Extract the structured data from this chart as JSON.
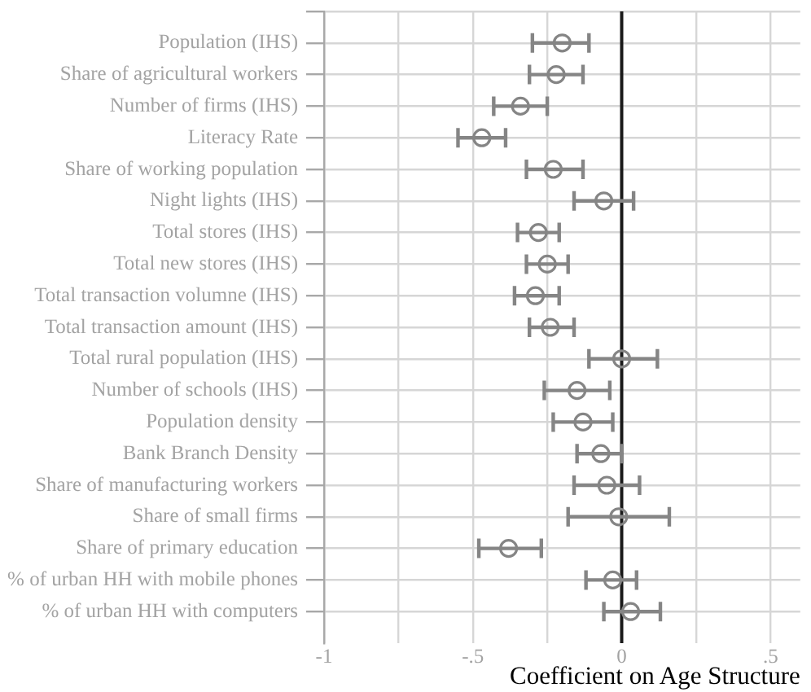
{
  "chart_data": {
    "type": "scatter",
    "orientation": "horizontal",
    "xlabel": "Coefficient on Age Structure",
    "categories": [
      "Population (IHS)",
      "Share of agricultural workers",
      "Number of firms (IHS)",
      "Literacy Rate",
      "Share of working population",
      "Night lights (IHS)",
      "Total stores (IHS)",
      "Total new stores (IHS)",
      "Total transaction volumne (IHS)",
      "Total transaction amount (IHS)",
      "Total rural population (IHS)",
      "Number of schools (IHS)",
      "Population density",
      "Bank Branch Density",
      "Share of manufacturing workers",
      "Share of small firms",
      "Share of primary education",
      "% of urban HH with mobile phones",
      "% of urban HH with computers"
    ],
    "values": [
      -0.2,
      -0.22,
      -0.34,
      -0.47,
      -0.23,
      -0.06,
      -0.28,
      -0.25,
      -0.29,
      -0.24,
      0.0,
      -0.15,
      -0.13,
      -0.07,
      -0.05,
      -0.01,
      -0.38,
      -0.03,
      0.03
    ],
    "errors": [
      [
        -0.3,
        -0.11
      ],
      [
        -0.31,
        -0.13
      ],
      [
        -0.43,
        -0.25
      ],
      [
        -0.55,
        -0.39
      ],
      [
        -0.32,
        -0.13
      ],
      [
        -0.16,
        0.04
      ],
      [
        -0.35,
        -0.21
      ],
      [
        -0.32,
        -0.18
      ],
      [
        -0.36,
        -0.21
      ],
      [
        -0.31,
        -0.16
      ],
      [
        -0.11,
        0.12
      ],
      [
        -0.26,
        -0.04
      ],
      [
        -0.23,
        -0.03
      ],
      [
        -0.15,
        0.0
      ],
      [
        -0.16,
        0.06
      ],
      [
        -0.18,
        0.16
      ],
      [
        -0.48,
        -0.27
      ],
      [
        -0.12,
        0.05
      ],
      [
        -0.06,
        0.13
      ]
    ],
    "color": "#858585",
    "marker": "circle",
    "xlim": [
      -1,
      0.6
    ],
    "xticks": [
      -1,
      {
        "value": -0.75,
        "label": null
      },
      {
        "value": -0.5,
        "label": "-.5"
      },
      {
        "value": -0.25,
        "label": null
      },
      0,
      {
        "value": 0.25,
        "label": null
      },
      {
        "value": 0.5,
        "label": ".5"
      }
    ],
    "grid": true,
    "ref_lines": [
      {
        "axis": "x",
        "value": 0,
        "color": "#1a1a1a"
      }
    ]
  }
}
